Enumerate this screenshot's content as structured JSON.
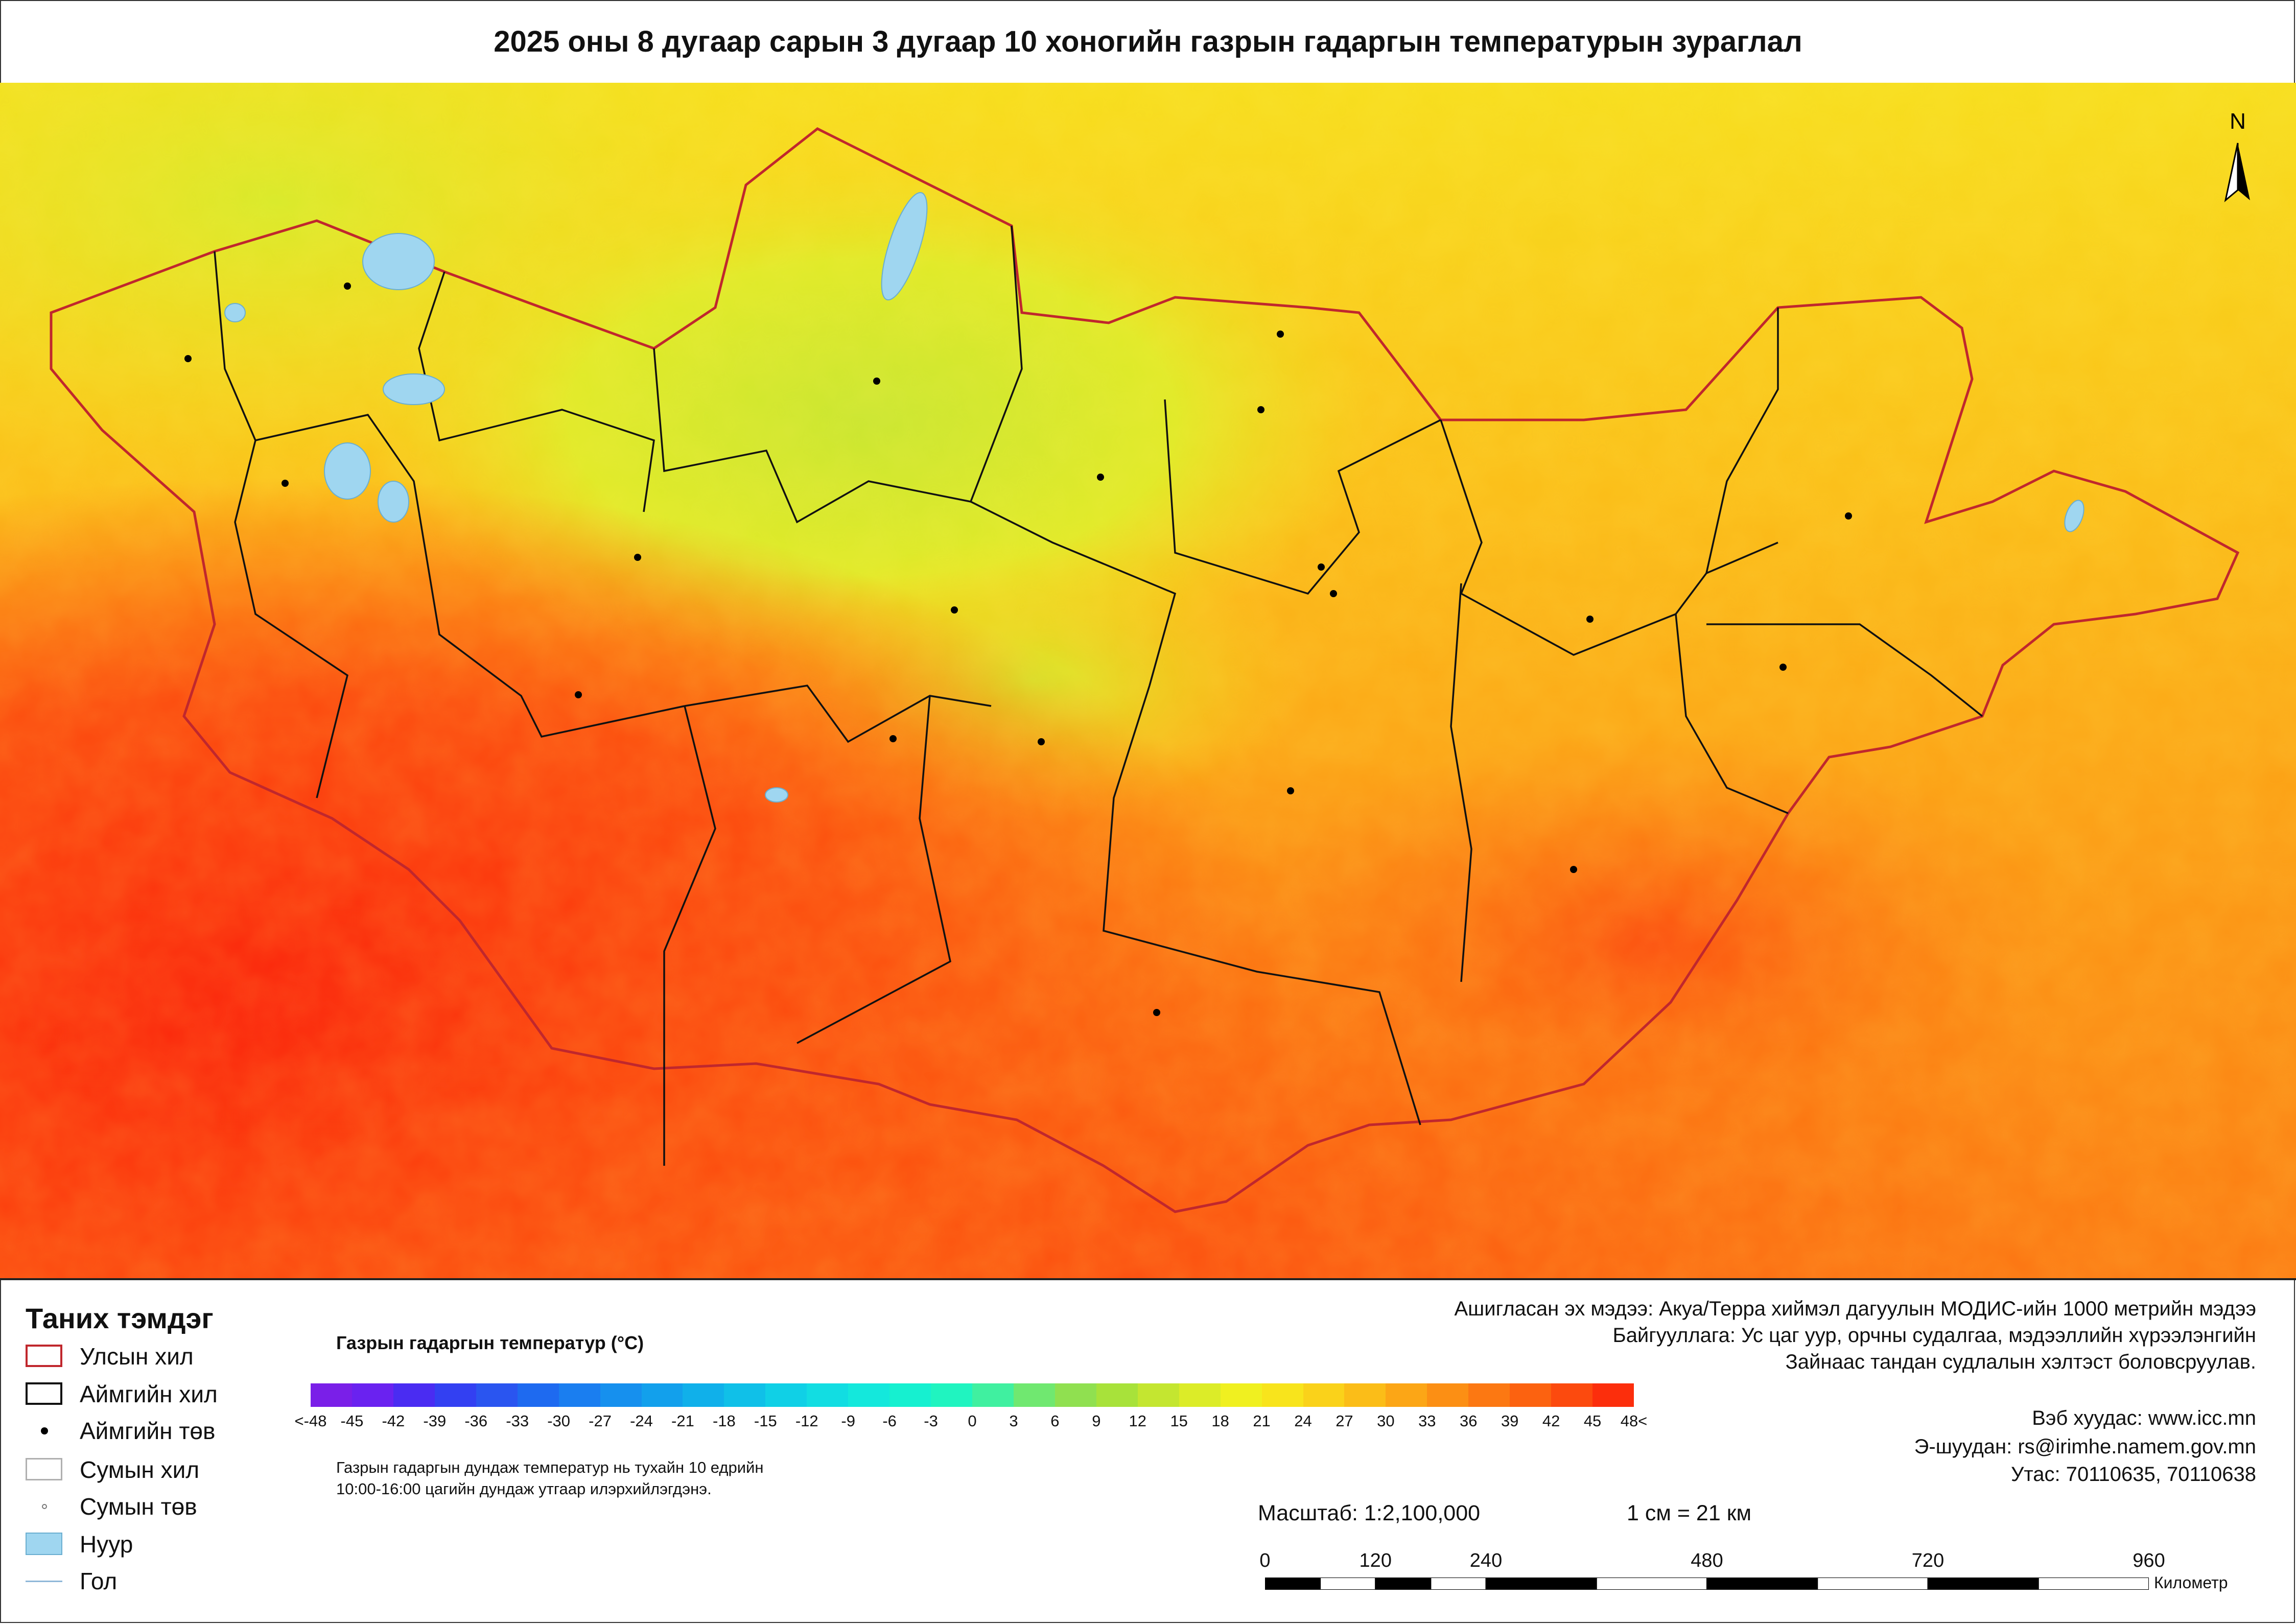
{
  "title": "2025 оны 8 дугаар сарын 3 дугаар 10 хоногийн газрын гадаргын температурын зураглал",
  "north_label": "N",
  "legend": {
    "title": "Таних тэмдэг",
    "items": [
      {
        "label": "Улсын хил",
        "symbol": "national-border",
        "color": "#c0272d"
      },
      {
        "label": "Аймгийн хил",
        "symbol": "province-border",
        "color": "#111111"
      },
      {
        "label": "Аймгийн төв",
        "symbol": "province-center",
        "color": "#000000"
      },
      {
        "label": "Сумын хил",
        "symbol": "district-border",
        "color": "#b0b0b0"
      },
      {
        "label": "Сумын төв",
        "symbol": "district-center",
        "color": "#777777"
      },
      {
        "label": "Нуур",
        "symbol": "lake",
        "color": "#9fd6f0"
      },
      {
        "label": "Гол",
        "symbol": "river",
        "color": "#8fb8d8"
      }
    ]
  },
  "color_ramp": {
    "title": "Газрын гадаргын температур (°C)",
    "labels": [
      "<-48",
      "-45",
      "-42",
      "-39",
      "-36",
      "-33",
      "-30",
      "-27",
      "-24",
      "-21",
      "-18",
      "-15",
      "-12",
      "-9",
      "-6",
      "-3",
      "0",
      "3",
      "6",
      "9",
      "12",
      "15",
      "18",
      "21",
      "24",
      "27",
      "30",
      "33",
      "36",
      "39",
      "42",
      "45",
      "48<"
    ],
    "colors": [
      "#7a1fe8",
      "#6a22f0",
      "#4a2cf2",
      "#3340f2",
      "#2a55f0",
      "#1e6af0",
      "#1a7ef0",
      "#1690ee",
      "#12a0ec",
      "#10b0ea",
      "#10c0e8",
      "#10d0e6",
      "#12dde2",
      "#14e8dc",
      "#16f0d0",
      "#20f4c0",
      "#40f0a0",
      "#70e870",
      "#90e050",
      "#a8e23a",
      "#c4e630",
      "#dcec28",
      "#f0f020",
      "#f8e41c",
      "#fad21a",
      "#fbbd18",
      "#fca616",
      "#fc8f14",
      "#fc7812",
      "#fc6210",
      "#fc4a0e",
      "#fc2e0c"
    ],
    "note_lines": [
      "Газрын гадаргын дундаж температур нь тухайн 10 едрийн",
      "10:00-16:00 цагийн дундаж утгаар илэрхийлэгдэнэ."
    ]
  },
  "info": {
    "source_line1": "Ашигласан эх мэдээ: Акуа/Терра хиймэл дагуулын МОДИС-ийн 1000 метрийн мэдээ",
    "source_line2": "Байгууллага: Ус цаг уур, орчны судалгаа, мэдээллийн хүрээлэнгийн",
    "source_line3": "Зайнаас тандан судлалын хэлтэст боловсруулав.",
    "website": "Вэб хуудас: www.icc.mn",
    "email": "Э-шуудан: rs@irimhe.namem.gov.mn",
    "phone": "Утас: 70110635, 70110638"
  },
  "scale": {
    "text": "Масштаб: 1:2,100,000",
    "cm_text": "1 см = 21 км",
    "ticks": [
      "0",
      "120",
      "240",
      "480",
      "720",
      "960"
    ],
    "tick_values": [
      0,
      120,
      240,
      480,
      720,
      960
    ],
    "unit": "Километр"
  }
}
